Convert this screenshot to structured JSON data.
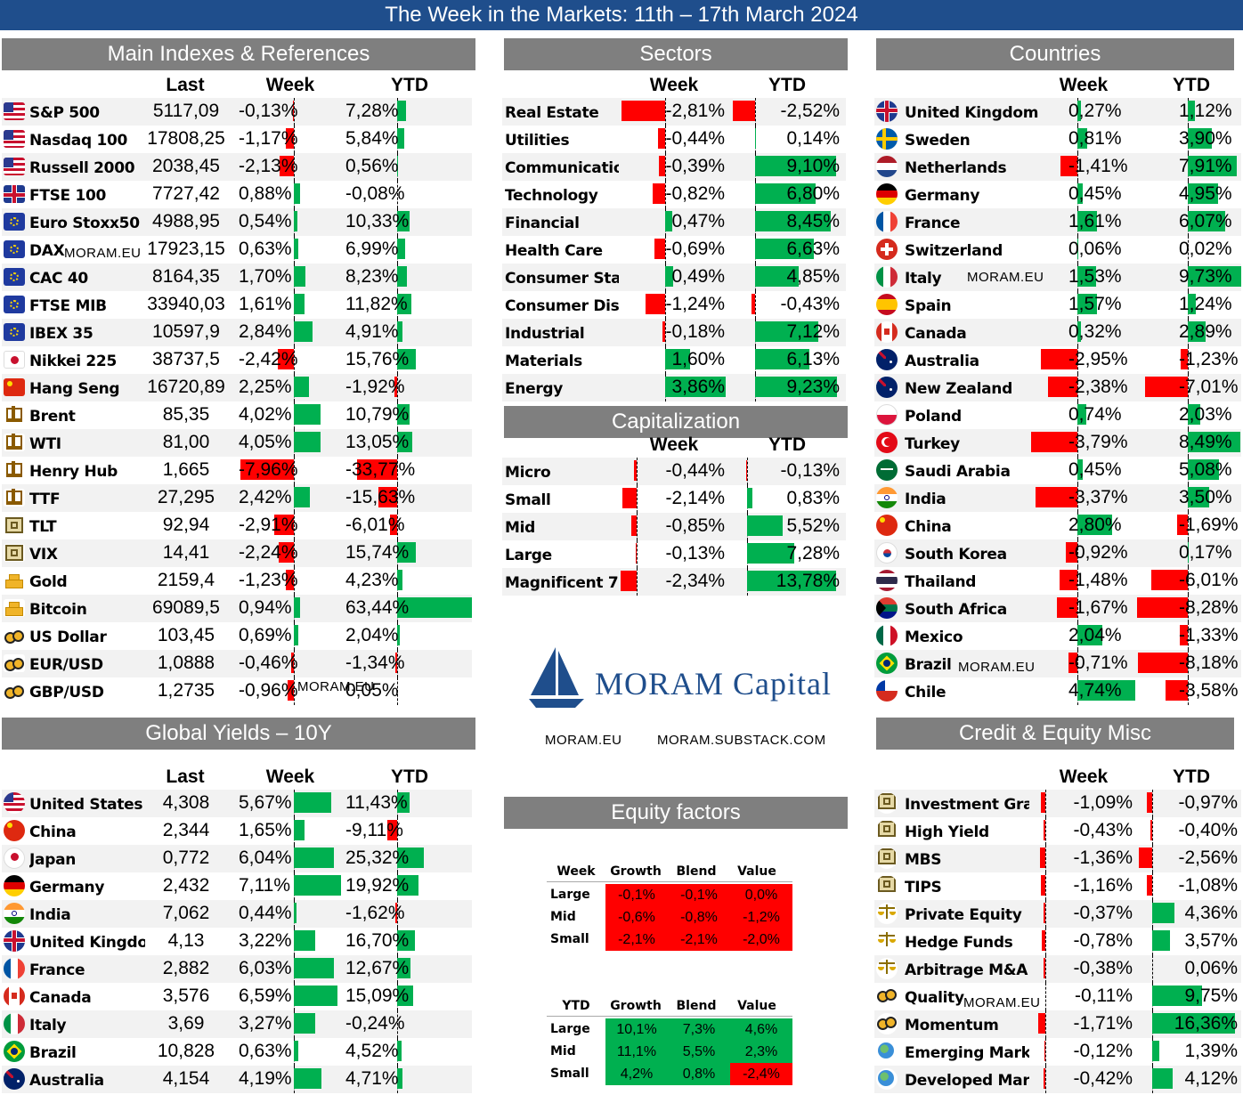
{
  "title": "The Week in the Markets: 11th – 17th March 2024",
  "panels": {
    "indexes": "Main Indexes & References",
    "sectors": "Sectors",
    "countries": "Countries",
    "capitalization": "Capitalization",
    "yields": "Global Yields – 10Y",
    "equity_factors": "Equity factors",
    "credit": "Credit & Equity Misc"
  },
  "col": {
    "last": "Last",
    "week": "Week",
    "ytd": "YTD"
  },
  "watermark": "MORAM.EU",
  "logo": {
    "name": "MORAM Capital",
    "links": [
      "MORAM.EU",
      "MORAM.SUBSTACK.COM"
    ]
  },
  "indexes": [
    {
      "name": "S&P 500",
      "flag": "us",
      "last": "5117,09",
      "week": "-0,13%",
      "w": -0.13,
      "ytd": "7,28%",
      "y": 7.28
    },
    {
      "name": "Nasdaq 100",
      "flag": "us",
      "last": "17808,25",
      "week": "-1,17%",
      "w": -1.17,
      "ytd": "5,84%",
      "y": 5.84
    },
    {
      "name": "Russell 2000",
      "flag": "us",
      "last": "2038,45",
      "week": "-2,13%",
      "w": -2.13,
      "ytd": "0,56%",
      "y": 0.56
    },
    {
      "name": "FTSE 100",
      "flag": "uk",
      "last": "7727,42",
      "week": "0,88%",
      "w": 0.88,
      "ytd": "-0,08%",
      "y": -0.08
    },
    {
      "name": "Euro Stoxx50",
      "flag": "eu",
      "last": "4988,95",
      "week": "0,54%",
      "w": 0.54,
      "ytd": "10,33%",
      "y": 10.33
    },
    {
      "name": "DAX",
      "flag": "eu",
      "last": "17923,15",
      "week": "0,63%",
      "w": 0.63,
      "ytd": "6,99%",
      "y": 6.99
    },
    {
      "name": "CAC 40",
      "flag": "eu",
      "last": "8164,35",
      "week": "1,70%",
      "w": 1.7,
      "ytd": "8,23%",
      "y": 8.23
    },
    {
      "name": "FTSE MIB",
      "flag": "eu",
      "last": "33940,03",
      "week": "1,61%",
      "w": 1.61,
      "ytd": "11,82%",
      "y": 11.82
    },
    {
      "name": "IBEX 35",
      "flag": "eu",
      "last": "10597,9",
      "week": "2,84%",
      "w": 2.84,
      "ytd": "4,91%",
      "y": 4.91
    },
    {
      "name": "Nikkei 225",
      "flag": "jp",
      "last": "38737,5",
      "week": "-2,42%",
      "w": -2.42,
      "ytd": "15,76%",
      "y": 15.76
    },
    {
      "name": "Hang Seng",
      "flag": "cn",
      "last": "16720,89",
      "week": "2,25%",
      "w": 2.25,
      "ytd": "-1,92%",
      "y": -1.92
    },
    {
      "name": "Brent",
      "flag": "oil",
      "last": "85,35",
      "week": "4,02%",
      "w": 4.02,
      "ytd": "10,79%",
      "y": 10.79
    },
    {
      "name": "WTI",
      "flag": "oil",
      "last": "81,00",
      "week": "4,05%",
      "w": 4.05,
      "ytd": "13,05%",
      "y": 13.05
    },
    {
      "name": "Henry Hub",
      "flag": "oil",
      "last": "1,665",
      "week": "-7,96%",
      "w": -7.96,
      "ytd": "-33,77%",
      "y": -33.77
    },
    {
      "name": "TTF",
      "flag": "oil",
      "last": "27,295",
      "week": "2,42%",
      "w": 2.42,
      "ytd": "-15,63%",
      "y": -15.63
    },
    {
      "name": "TLT",
      "flag": "bank",
      "last": "92,94",
      "week": "-2,91%",
      "w": -2.91,
      "ytd": "-6,01%",
      "y": -6.01
    },
    {
      "name": "VIX",
      "flag": "bank",
      "last": "14,41",
      "week": "-2,24%",
      "w": -2.24,
      "ytd": "15,74%",
      "y": 15.74
    },
    {
      "name": "Gold",
      "flag": "gold",
      "last": "2159,4",
      "week": "-1,23%",
      "w": -1.23,
      "ytd": "4,23%",
      "y": 4.23
    },
    {
      "name": "Bitcoin",
      "flag": "gold",
      "last": "69089,5",
      "week": "0,94%",
      "w": 0.94,
      "ytd": "63,44%",
      "y": 63.44
    },
    {
      "name": "US Dollar",
      "flag": "coin",
      "last": "103,45",
      "week": "0,69%",
      "w": 0.69,
      "ytd": "2,04%",
      "y": 2.04
    },
    {
      "name": "EUR/USD",
      "flag": "coin",
      "last": "1,0888",
      "week": "-0,46%",
      "w": -0.46,
      "ytd": "-1,34%",
      "y": -1.34
    },
    {
      "name": "GBP/USD",
      "flag": "coin",
      "last": "1,2735",
      "week": "-0,96%",
      "w": -0.96,
      "ytd": "0,05%",
      "y": 0.05
    }
  ],
  "sectors": [
    {
      "name": "Real Estate",
      "week": "-2,81%",
      "w": -2.81,
      "ytd": "-2,52%",
      "y": -2.52
    },
    {
      "name": "Utilities",
      "week": "-0,44%",
      "w": -0.44,
      "ytd": "0,14%",
      "y": 0.14
    },
    {
      "name": "Communication",
      "week": "-0,39%",
      "w": -0.39,
      "ytd": "9,10%",
      "y": 9.1
    },
    {
      "name": "Technology",
      "week": "-0,82%",
      "w": -0.82,
      "ytd": "6,80%",
      "y": 6.8
    },
    {
      "name": "Financial",
      "week": "0,47%",
      "w": 0.47,
      "ytd": "8,45%",
      "y": 8.45
    },
    {
      "name": "Health Care",
      "week": "-0,69%",
      "w": -0.69,
      "ytd": "6,63%",
      "y": 6.63
    },
    {
      "name": "Consumer Staple",
      "week": "0,49%",
      "w": 0.49,
      "ytd": "4,85%",
      "y": 4.85
    },
    {
      "name": "Consumer Discre",
      "week": "-1,24%",
      "w": -1.24,
      "ytd": "-0,43%",
      "y": -0.43
    },
    {
      "name": "Industrial",
      "week": "-0,18%",
      "w": -0.18,
      "ytd": "7,12%",
      "y": 7.12
    },
    {
      "name": "Materials",
      "week": "1,60%",
      "w": 1.6,
      "ytd": "6,13%",
      "y": 6.13
    },
    {
      "name": "Energy",
      "week": "3,86%",
      "w": 3.86,
      "ytd": "9,23%",
      "y": 9.23
    }
  ],
  "capitalization": [
    {
      "name": "Micro",
      "week": "-0,44%",
      "w": -0.44,
      "ytd": "-0,13%",
      "y": -0.13
    },
    {
      "name": "Small",
      "week": "-2,14%",
      "w": -2.14,
      "ytd": "0,83%",
      "y": 0.83
    },
    {
      "name": "Mid",
      "week": "-0,85%",
      "w": -0.85,
      "ytd": "5,52%",
      "y": 5.52
    },
    {
      "name": "Large",
      "week": "-0,13%",
      "w": -0.13,
      "ytd": "7,28%",
      "y": 7.28
    },
    {
      "name": "Magnificent 7",
      "week": "-2,34%",
      "w": -2.34,
      "ytd": "13,78%",
      "y": 13.78
    }
  ],
  "countries": [
    {
      "name": "United Kingdom",
      "flag": "uk",
      "week": "0,27%",
      "w": 0.27,
      "ytd": "1,12%",
      "y": 1.12
    },
    {
      "name": "Sweden",
      "flag": "se",
      "week": "0,81%",
      "w": 0.81,
      "ytd": "3,90%",
      "y": 3.9
    },
    {
      "name": "Netherlands",
      "flag": "nl",
      "week": "-1,41%",
      "w": -1.41,
      "ytd": "7,91%",
      "y": 7.91
    },
    {
      "name": "Germany",
      "flag": "de",
      "week": "0,45%",
      "w": 0.45,
      "ytd": "4,95%",
      "y": 4.95
    },
    {
      "name": "France",
      "flag": "fr",
      "week": "1,61%",
      "w": 1.61,
      "ytd": "6,07%",
      "y": 6.07
    },
    {
      "name": "Switzerland",
      "flag": "ch",
      "week": "0,06%",
      "w": 0.06,
      "ytd": "0,02%",
      "y": 0.02
    },
    {
      "name": "Italy",
      "flag": "it",
      "week": "1,53%",
      "w": 1.53,
      "ytd": "9,73%",
      "y": 9.73
    },
    {
      "name": "Spain",
      "flag": "es",
      "week": "1,57%",
      "w": 1.57,
      "ytd": "1,24%",
      "y": 1.24
    },
    {
      "name": "Canada",
      "flag": "ca",
      "week": "0,32%",
      "w": 0.32,
      "ytd": "2,89%",
      "y": 2.89
    },
    {
      "name": "Australia",
      "flag": "au",
      "week": "-2,95%",
      "w": -2.95,
      "ytd": "-1,23%",
      "y": -1.23
    },
    {
      "name": "New Zealand",
      "flag": "au",
      "week": "-2,38%",
      "w": -2.38,
      "ytd": "-7,01%",
      "y": -7.01
    },
    {
      "name": "Poland",
      "flag": "pl",
      "week": "0,74%",
      "w": 0.74,
      "ytd": "2,03%",
      "y": 2.03
    },
    {
      "name": "Turkey",
      "flag": "tr",
      "week": "-3,79%",
      "w": -3.79,
      "ytd": "8,49%",
      "y": 8.49
    },
    {
      "name": "Saudi Arabia",
      "flag": "sa",
      "week": "0,45%",
      "w": 0.45,
      "ytd": "5,08%",
      "y": 5.08
    },
    {
      "name": "India",
      "flag": "in",
      "week": "-3,37%",
      "w": -3.37,
      "ytd": "3,50%",
      "y": 3.5
    },
    {
      "name": "China",
      "flag": "cn",
      "week": "2,80%",
      "w": 2.8,
      "ytd": "-1,69%",
      "y": -1.69
    },
    {
      "name": "South Korea",
      "flag": "kr",
      "week": "-0,92%",
      "w": -0.92,
      "ytd": "0,17%",
      "y": 0.17
    },
    {
      "name": "Thailand",
      "flag": "th",
      "week": "-1,48%",
      "w": -1.48,
      "ytd": "-6,01%",
      "y": -6.01
    },
    {
      "name": "South Africa",
      "flag": "za",
      "week": "-1,67%",
      "w": -1.67,
      "ytd": "-8,28%",
      "y": -8.28
    },
    {
      "name": "Mexico",
      "flag": "mx",
      "week": "2,04%",
      "w": 2.04,
      "ytd": "-1,33%",
      "y": -1.33
    },
    {
      "name": "Brazil",
      "flag": "br",
      "week": "-0,71%",
      "w": -0.71,
      "ytd": "-8,18%",
      "y": -8.18
    },
    {
      "name": "Chile",
      "flag": "cl",
      "week": "4,74%",
      "w": 4.74,
      "ytd": "-3,58%",
      "y": -3.58
    }
  ],
  "yields": [
    {
      "name": "United States",
      "flag": "us",
      "last": "4,308",
      "week": "5,67%",
      "w": 5.67,
      "ytd": "11,43%",
      "y": 11.43
    },
    {
      "name": "China",
      "flag": "cn",
      "last": "2,344",
      "week": "1,65%",
      "w": 1.65,
      "ytd": "-9,11%",
      "y": -9.11
    },
    {
      "name": "Japan",
      "flag": "jp",
      "last": "0,772",
      "week": "6,04%",
      "w": 6.04,
      "ytd": "25,32%",
      "y": 25.32
    },
    {
      "name": "Germany",
      "flag": "de",
      "last": "2,432",
      "week": "7,11%",
      "w": 7.11,
      "ytd": "19,92%",
      "y": 19.92
    },
    {
      "name": "India",
      "flag": "in",
      "last": "7,062",
      "week": "0,44%",
      "w": 0.44,
      "ytd": "-1,62%",
      "y": -1.62
    },
    {
      "name": "United Kingdon",
      "flag": "uk",
      "last": "4,13",
      "week": "3,22%",
      "w": 3.22,
      "ytd": "16,70%",
      "y": 16.7
    },
    {
      "name": "France",
      "flag": "fr",
      "last": "2,882",
      "week": "6,03%",
      "w": 6.03,
      "ytd": "12,67%",
      "y": 12.67
    },
    {
      "name": "Canada",
      "flag": "ca",
      "last": "3,576",
      "week": "6,59%",
      "w": 6.59,
      "ytd": "15,09%",
      "y": 15.09
    },
    {
      "name": "Italy",
      "flag": "it",
      "last": "3,69",
      "week": "3,27%",
      "w": 3.27,
      "ytd": "-0,24%",
      "y": -0.24
    },
    {
      "name": "Brazil",
      "flag": "br",
      "last": "10,828",
      "week": "0,63%",
      "w": 0.63,
      "ytd": "4,52%",
      "y": 4.52
    },
    {
      "name": "Australia",
      "flag": "au",
      "last": "4,154",
      "week": "4,19%",
      "w": 4.19,
      "ytd": "4,71%",
      "y": 4.71
    }
  ],
  "credit": [
    {
      "name": "Investment Grade",
      "flag": "bank",
      "week": "-1,09%",
      "w": -1.09,
      "ytd": "-0,97%",
      "y": -0.97
    },
    {
      "name": "High Yield",
      "flag": "bank",
      "week": "-0,43%",
      "w": -0.43,
      "ytd": "-0,40%",
      "y": -0.4
    },
    {
      "name": "MBS",
      "flag": "bank",
      "week": "-1,36%",
      "w": -1.36,
      "ytd": "-2,56%",
      "y": -2.56
    },
    {
      "name": "TIPS",
      "flag": "bank",
      "week": "-1,16%",
      "w": -1.16,
      "ytd": "-1,08%",
      "y": -1.08
    },
    {
      "name": "Private Equity",
      "flag": "scale",
      "week": "-0,37%",
      "w": -0.37,
      "ytd": "4,36%",
      "y": 4.36
    },
    {
      "name": "Hedge Funds",
      "flag": "scale",
      "week": "-0,78%",
      "w": -0.78,
      "ytd": "3,57%",
      "y": 3.57
    },
    {
      "name": "Arbitrage M&A",
      "flag": "scale",
      "week": "-0,38%",
      "w": -0.38,
      "ytd": "0,06%",
      "y": 0.06
    },
    {
      "name": "Quality",
      "flag": "coin",
      "week": "-0,11%",
      "w": -0.11,
      "ytd": "9,75%",
      "y": 9.75
    },
    {
      "name": "Momentum",
      "flag": "coin",
      "week": "-1,71%",
      "w": -1.71,
      "ytd": "16,36%",
      "y": 16.36
    },
    {
      "name": "Emerging Markets",
      "flag": "globe",
      "week": "-0,12%",
      "w": -0.12,
      "ytd": "1,39%",
      "y": 1.39
    },
    {
      "name": "Developed Markets",
      "flag": "globe",
      "week": "-0,42%",
      "w": -0.42,
      "ytd": "4,12%",
      "y": 4.12
    }
  ],
  "factors": {
    "cols": [
      "Growth",
      "Blend",
      "Value"
    ],
    "rows": [
      "Large",
      "Mid",
      "Small"
    ],
    "week_label": "Week",
    "ytd_label": "YTD",
    "week": [
      [
        "-0,1%",
        "-0,1%",
        "0,0%"
      ],
      [
        "-0,6%",
        "-0,8%",
        "-1,2%"
      ],
      [
        "-2,1%",
        "-2,1%",
        "-2,0%"
      ]
    ],
    "ytd": [
      [
        "10,1%",
        "7,3%",
        "4,6%"
      ],
      [
        "11,1%",
        "5,5%",
        "2,3%"
      ],
      [
        "4,2%",
        "0,8%",
        "-2,4%"
      ]
    ]
  },
  "colors": {
    "banner": "#1f4e8c",
    "panel": "#7f7f7f",
    "pos": "#00b050",
    "neg": "#ff0000",
    "alt_row": "#f2f2f2"
  }
}
